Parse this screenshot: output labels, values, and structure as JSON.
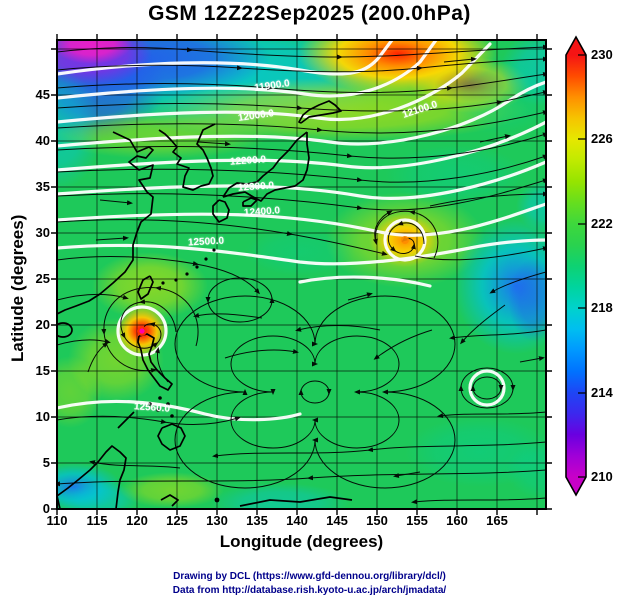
{
  "title": "GSM 12Z22Sep2025 (200.0hPa)",
  "axes": {
    "x_label": "Longitude (degrees)",
    "y_label": "Latitude (degrees)",
    "x_ticks": [
      "110",
      "115",
      "120",
      "125",
      "130",
      "135",
      "140",
      "145",
      "150",
      "155",
      "160",
      "165"
    ],
    "y_ticks": [
      "45",
      "40",
      "35",
      "30",
      "25",
      "20",
      "15",
      "10",
      "5",
      "0"
    ]
  },
  "colorbar": {
    "ticks": [
      "230",
      "226",
      "222",
      "218",
      "214",
      "210"
    ],
    "range_min": 210,
    "range_max": 230,
    "palette": [
      "#c800c8",
      "#a000d8",
      "#6a00e0",
      "#3c28ee",
      "#1e46f5",
      "#0072ff",
      "#0098ff",
      "#00bef0",
      "#00d2cc",
      "#00d49e",
      "#0ed272",
      "#2ad24e",
      "#3ed83c",
      "#66de1e",
      "#96e400",
      "#c0ea00",
      "#e6e800",
      "#f6c400",
      "#ff9000",
      "#ff4c00",
      "#f51414"
    ]
  },
  "contours": {
    "labels": [
      "11900.0",
      "12000.0",
      "12100.0",
      "12200.0",
      "12300.0",
      "12400.0",
      "12500.0",
      "12560.0"
    ]
  },
  "footer": {
    "line1": "Drawing by DCL (https://www.gfd-dennou.org/library/dcl/)",
    "line2": "Data from http://database.rish.kyoto-u.ac.jp/arch/jmadata/"
  },
  "chart_data": {
    "type": "heatmap",
    "title": "GSM 12Z22Sep2025 (200.0hPa)",
    "xlabel": "Longitude (degrees)",
    "ylabel": "Latitude (degrees)",
    "xlim": [
      110,
      171
    ],
    "ylim": [
      0,
      51
    ],
    "x_ticks": [
      110,
      115,
      120,
      125,
      130,
      135,
      140,
      145,
      150,
      155,
      160,
      165
    ],
    "y_ticks": [
      0,
      5,
      10,
      15,
      20,
      25,
      30,
      35,
      40,
      45
    ],
    "grid": true,
    "colorbar": {
      "range": [
        210,
        230
      ],
      "ticks": [
        210,
        214,
        218,
        222,
        226,
        230
      ],
      "orientation": "vertical",
      "position": "right",
      "palette": "rainbow: magenta(210) -> blue(214) -> cyan(218) -> green(222) -> yellow(226) -> orange/red(230)"
    },
    "layers": [
      "shaded scalar field (temperature, K) in rainbow palette",
      "white geopotential-height contours (m) labeled 11900.0-12560.0",
      "black wind streamlines with arrowheads",
      "black coastlines of East Asia / Western Pacific"
    ],
    "height_contour_labels_m": [
      11900.0,
      12000.0,
      12100.0,
      12200.0,
      12300.0,
      12400.0,
      12500.0,
      12560.0
    ],
    "notable_features": [
      {
        "feature": "cold pool (magenta/blue)",
        "lon": 112,
        "lat": 49,
        "approx_value_K": 211
      },
      {
        "feature": "warm band (orange/red)",
        "lon": 144,
        "lat": 49,
        "approx_value_K": 229
      },
      {
        "feature": "typhoon-like vortex with warm core",
        "lon": 120.5,
        "lat": 19.5,
        "approx_value_K": 229
      },
      {
        "feature": "warm-core vortex",
        "lon": 153.5,
        "lat": 29,
        "approx_value_K": 227
      },
      {
        "feature": "large anticyclonic gyre",
        "lon": 142,
        "lat": 12.5,
        "approx_value_K": 221
      },
      {
        "feature": "gyre with white contour ring",
        "lon": 164,
        "lat": 13,
        "approx_value_K": 220
      },
      {
        "feature": "cool patch",
        "lon": 167,
        "lat": 24,
        "approx_value_K": 217
      },
      {
        "feature": "cool patch",
        "lon": 112,
        "lat": 2,
        "approx_value_K": 217
      },
      {
        "feature": "background field",
        "lon": 135,
        "lat": 20,
        "approx_value_K": 221
      }
    ]
  }
}
